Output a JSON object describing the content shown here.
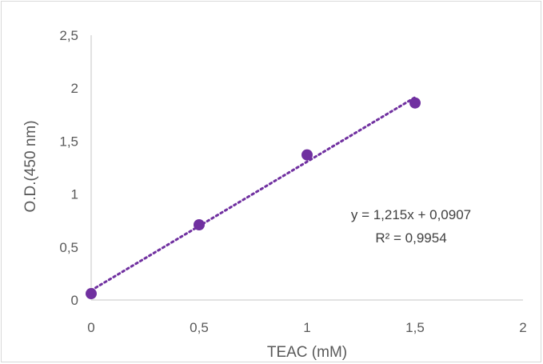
{
  "chart_data": {
    "type": "scatter",
    "xlabel": "TEAC (mM)",
    "ylabel": "O.D.(450 nm)",
    "xlim": [
      0,
      2
    ],
    "ylim": [
      0,
      2.5
    ],
    "x_ticks": [
      "0",
      "0,5",
      "1",
      "1,5",
      "2"
    ],
    "y_ticks": [
      "0",
      "0,5",
      "1",
      "1,5",
      "2",
      "2,5"
    ],
    "points": [
      {
        "x": 0,
        "y": 0.06
      },
      {
        "x": 0.5,
        "y": 0.71
      },
      {
        "x": 1.0,
        "y": 1.37
      },
      {
        "x": 1.5,
        "y": 1.86
      }
    ],
    "trendline": {
      "type": "linear",
      "slope": 1.215,
      "intercept": 0.0907,
      "style": "dotted"
    },
    "equation_label": "y = 1,215x + 0,0907",
    "r2_label": "R² = 0,9954",
    "grid": false,
    "colors": {
      "marker": "#7030a0",
      "axis": "#d9d9d9",
      "text": "#595959"
    }
  }
}
